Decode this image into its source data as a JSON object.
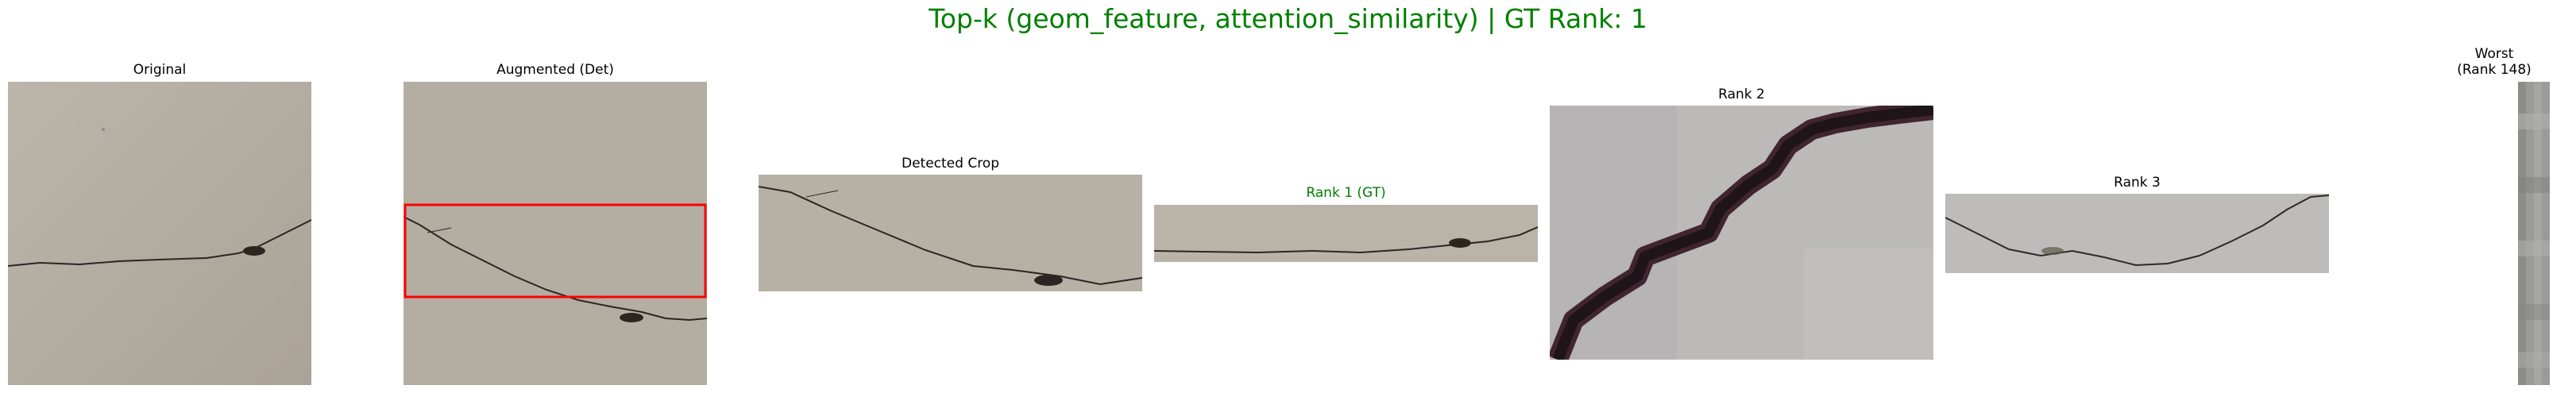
{
  "figure": {
    "title": "Top-k (geom_feature, attention_similarity) | GT Rank: 1",
    "title_color": "#008000"
  },
  "panels": {
    "original": {
      "title": "Original"
    },
    "augmented": {
      "title": "Augmented (Det)",
      "box_color": "#ff0000"
    },
    "detected": {
      "title": "Detected Crop"
    },
    "rank1": {
      "title": "Rank 1 (GT)",
      "title_color": "#008000"
    },
    "rank2": {
      "title": "Rank 2"
    },
    "rank3": {
      "title": "Rank 3"
    },
    "worst": {
      "title_line1": "Worst",
      "title_line2": "(Rank 148)"
    }
  }
}
